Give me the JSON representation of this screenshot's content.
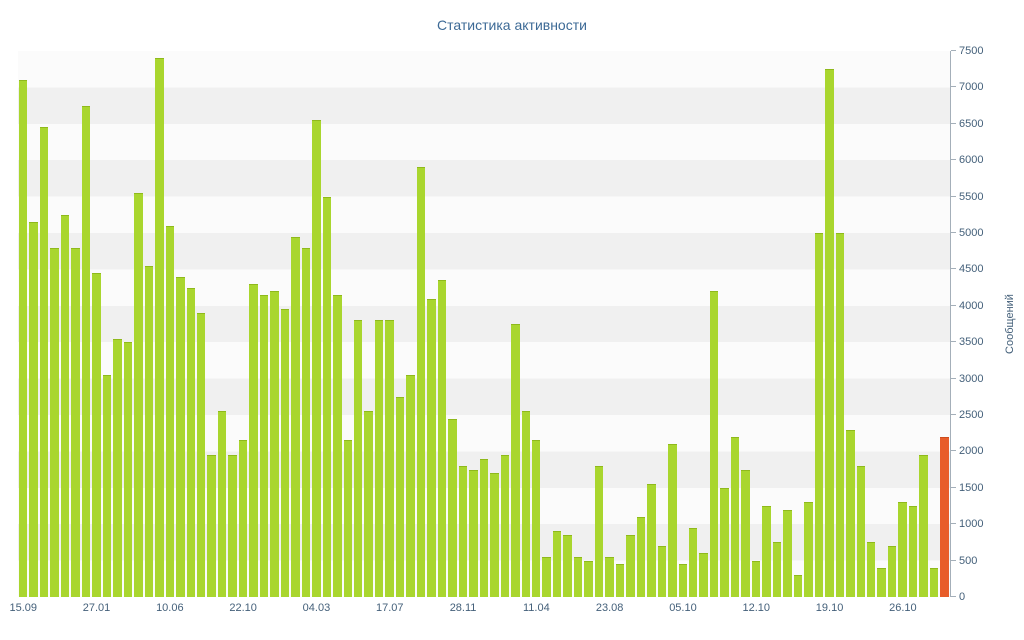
{
  "title": "Статистика активности",
  "chart_data": {
    "type": "bar",
    "title": "Статистика активности",
    "xlabel": "",
    "ylabel": "Сообщений",
    "ylim": [
      0,
      7500
    ],
    "y_tick_step": 500,
    "grid": "striped-rows",
    "legend": "none",
    "bar_color": "#a9d62e",
    "bar_border_color": "#8fb91c",
    "highlight_color": "#e85d2a",
    "highlight_border_color": "#cc4c1d",
    "highlight_index": 88,
    "values": [
      7100,
      5150,
      6450,
      4800,
      5250,
      4800,
      6750,
      4450,
      3050,
      3550,
      3500,
      5550,
      4550,
      7400,
      5100,
      4400,
      4250,
      3900,
      1950,
      2550,
      1950,
      2150,
      4300,
      4150,
      4200,
      3950,
      4950,
      4800,
      6550,
      5500,
      4150,
      2150,
      3800,
      2550,
      3800,
      3800,
      2750,
      3050,
      5900,
      4100,
      4350,
      2450,
      1800,
      1750,
      1900,
      1700,
      1950,
      3750,
      2550,
      2150,
      550,
      900,
      850,
      550,
      500,
      1800,
      550,
      450,
      850,
      1100,
      1550,
      700,
      2100,
      450,
      950,
      600,
      4200,
      1500,
      2200,
      1750,
      500,
      1250,
      750,
      1200,
      300,
      1300,
      5000,
      7250,
      5000,
      2300,
      1800,
      750,
      400,
      700,
      1300,
      1250,
      1950,
      400,
      2200
    ],
    "x_ticks": [
      {
        "index": 0,
        "label": "15.09"
      },
      {
        "index": 7,
        "label": "27.01"
      },
      {
        "index": 14,
        "label": "10.06"
      },
      {
        "index": 21,
        "label": "22.10"
      },
      {
        "index": 28,
        "label": "04.03"
      },
      {
        "index": 35,
        "label": "17.07"
      },
      {
        "index": 42,
        "label": "28.11"
      },
      {
        "index": 49,
        "label": "11.04"
      },
      {
        "index": 56,
        "label": "23.08"
      },
      {
        "index": 63,
        "label": "05.10"
      },
      {
        "index": 70,
        "label": "12.10"
      },
      {
        "index": 77,
        "label": "19.10"
      },
      {
        "index": 84,
        "label": "26.10"
      }
    ]
  }
}
